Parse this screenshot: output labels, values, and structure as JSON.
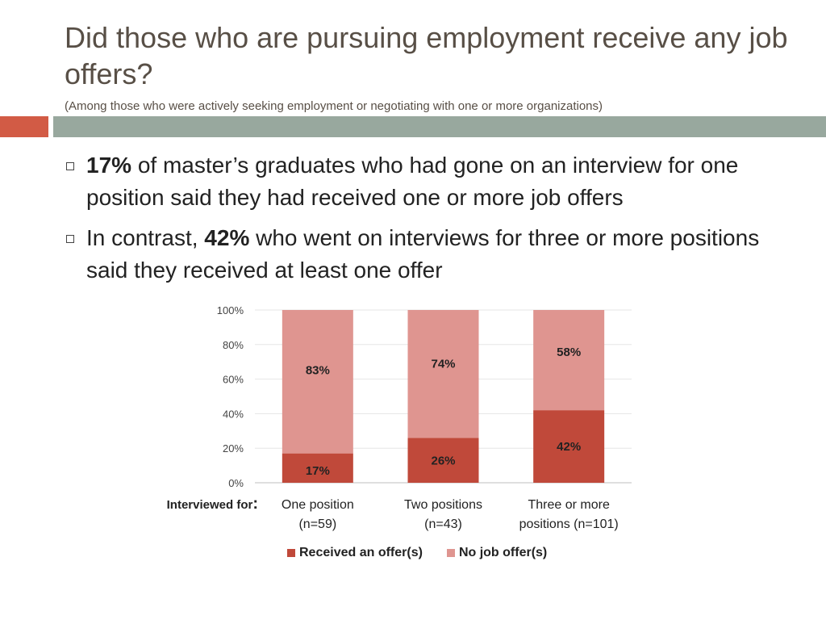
{
  "title": "Did those who are pursuing employment receive any job offers?",
  "subtitle": "(Among those who were actively seeking employment or negotiating with one or more organizations)",
  "bullets": [
    {
      "bold": "17%",
      "before": "",
      "after": " of master’s graduates who had gone on an interview for one position said they had received one or more job offers"
    },
    {
      "before": "In contrast, ",
      "bold": "42%",
      "after": " who went on interviews for three or more positions said they received at least one offer"
    }
  ],
  "colors": {
    "received": "#c0493a",
    "no_offer": "#df9590",
    "title": "#584f46",
    "accent_left": "#d25b45",
    "accent_right": "#98a89e"
  },
  "chart_data": {
    "type": "bar",
    "stacked": true,
    "x_prefix_label": "Interviewed for",
    "x_prefix_colon": ":",
    "categories": [
      [
        "One position",
        "(n=59)"
      ],
      [
        "Two positions",
        "(n=43)"
      ],
      [
        "Three or more",
        "positions (n=101)"
      ]
    ],
    "series": [
      {
        "name": "Received an offer(s)",
        "values": [
          17,
          26,
          42
        ],
        "labels": [
          "17%",
          "26%",
          "42%"
        ]
      },
      {
        "name": "No job offer(s)",
        "values": [
          83,
          74,
          58
        ],
        "labels": [
          "83%",
          "74%",
          "58%"
        ]
      }
    ],
    "ylim": [
      0,
      100
    ],
    "yticks": [
      "0%",
      "20%",
      "40%",
      "60%",
      "80%",
      "100%"
    ],
    "grid": true,
    "legend": "bottom"
  }
}
